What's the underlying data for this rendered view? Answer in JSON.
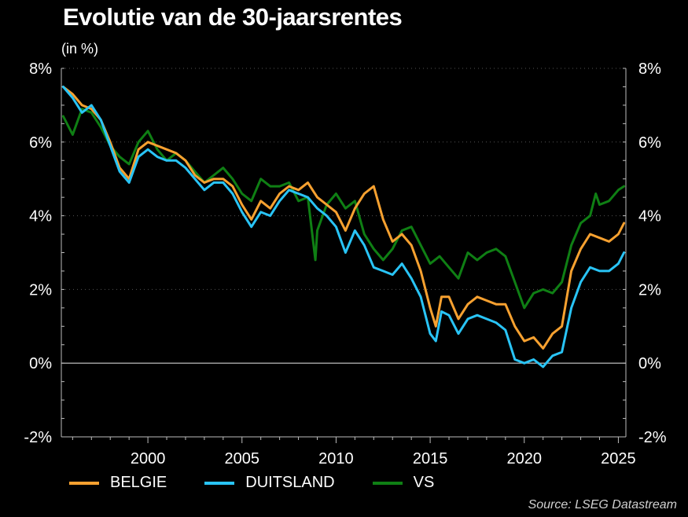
{
  "chart_data": {
    "type": "line",
    "title": "Evolutie van de 30-jaarsrentes",
    "subtitle": "(in %)",
    "source": "Source: LSEG Datastream",
    "ylim": [
      -2,
      8
    ],
    "yticks": [
      -2,
      0,
      2,
      4,
      6,
      8
    ],
    "ytick_labels": [
      "-2%",
      "0%",
      "2%",
      "4%",
      "6%",
      "8%"
    ],
    "xlim": [
      1995.4,
      2025.4
    ],
    "xticks": [
      2000,
      2005,
      2010,
      2015,
      2020,
      2025
    ],
    "xtick_labels": [
      "2000",
      "2005",
      "2010",
      "2015",
      "2020",
      "2025"
    ],
    "grid": true,
    "legend_position": "bottom-left",
    "series": [
      {
        "name": "BELGIE",
        "color": "#f7a130",
        "x": [
          1995.5,
          1996,
          1996.5,
          1997,
          1997.5,
          1998,
          1998.5,
          1999,
          1999.5,
          2000,
          2000.5,
          2001,
          2001.5,
          2002,
          2002.5,
          2003,
          2003.5,
          2004,
          2004.5,
          2005,
          2005.5,
          2006,
          2006.5,
          2007,
          2007.5,
          2008,
          2008.5,
          2009,
          2009.5,
          2010,
          2010.5,
          2011,
          2011.5,
          2012,
          2012.5,
          2013,
          2013.5,
          2014,
          2014.5,
          2015,
          2015.3,
          2015.6,
          2016,
          2016.5,
          2017,
          2017.5,
          2018,
          2018.5,
          2019,
          2019.5,
          2020,
          2020.5,
          2021,
          2021.5,
          2022,
          2022.5,
          2023,
          2023.5,
          2024,
          2024.5,
          2025,
          2025.3
        ],
        "values": [
          7.5,
          7.3,
          7.0,
          6.9,
          6.6,
          6.0,
          5.3,
          5.0,
          5.8,
          6.0,
          5.9,
          5.8,
          5.7,
          5.5,
          5.1,
          4.9,
          5.0,
          5.0,
          4.8,
          4.3,
          3.9,
          4.4,
          4.2,
          4.6,
          4.8,
          4.7,
          4.9,
          4.5,
          4.3,
          4.1,
          3.6,
          4.2,
          4.6,
          4.8,
          3.9,
          3.3,
          3.5,
          3.2,
          2.5,
          1.5,
          1.0,
          1.8,
          1.8,
          1.2,
          1.6,
          1.8,
          1.7,
          1.6,
          1.6,
          1.0,
          0.6,
          0.7,
          0.4,
          0.8,
          1.0,
          2.5,
          3.1,
          3.5,
          3.4,
          3.3,
          3.5,
          3.8
        ]
      },
      {
        "name": "DUITSLAND",
        "color": "#29c4f6",
        "x": [
          1995.5,
          1996,
          1996.5,
          1997,
          1997.5,
          1998,
          1998.5,
          1999,
          1999.5,
          2000,
          2000.5,
          2001,
          2001.5,
          2002,
          2002.5,
          2003,
          2003.5,
          2004,
          2004.5,
          2005,
          2005.5,
          2006,
          2006.5,
          2007,
          2007.5,
          2008,
          2008.5,
          2009,
          2009.5,
          2010,
          2010.5,
          2011,
          2011.5,
          2012,
          2012.5,
          2013,
          2013.5,
          2014,
          2014.5,
          2015,
          2015.3,
          2015.6,
          2016,
          2016.5,
          2017,
          2017.5,
          2018,
          2018.5,
          2019,
          2019.5,
          2020,
          2020.5,
          2021,
          2021.5,
          2022,
          2022.5,
          2023,
          2023.5,
          2024,
          2024.5,
          2025,
          2025.3
        ],
        "values": [
          7.5,
          7.2,
          6.8,
          7.0,
          6.6,
          5.9,
          5.2,
          4.9,
          5.6,
          5.8,
          5.6,
          5.5,
          5.5,
          5.3,
          5.0,
          4.7,
          4.9,
          4.9,
          4.6,
          4.1,
          3.7,
          4.1,
          4.0,
          4.4,
          4.7,
          4.6,
          4.5,
          4.2,
          4.0,
          3.7,
          3.0,
          3.6,
          3.2,
          2.6,
          2.5,
          2.4,
          2.7,
          2.3,
          1.8,
          0.8,
          0.6,
          1.4,
          1.3,
          0.8,
          1.2,
          1.3,
          1.2,
          1.1,
          0.9,
          0.1,
          0.0,
          0.1,
          -0.1,
          0.2,
          0.3,
          1.5,
          2.2,
          2.6,
          2.5,
          2.5,
          2.7,
          3.0
        ]
      },
      {
        "name": "VS",
        "color": "#0f7f14",
        "x": [
          1995.5,
          1996,
          1996.5,
          1997,
          1997.5,
          1998,
          1998.5,
          1999,
          1999.5,
          2000,
          2000.5,
          2001,
          2001.5,
          2002,
          2002.5,
          2003,
          2003.5,
          2004,
          2004.5,
          2005,
          2005.5,
          2006,
          2006.5,
          2007,
          2007.5,
          2008,
          2008.5,
          2008.9,
          2009,
          2009.5,
          2010,
          2010.5,
          2011,
          2011.5,
          2012,
          2012.5,
          2013,
          2013.5,
          2014,
          2014.5,
          2015,
          2015.5,
          2016,
          2016.5,
          2017,
          2017.5,
          2018,
          2018.5,
          2019,
          2019.5,
          2020,
          2020.5,
          2021,
          2021.5,
          2022,
          2022.5,
          2023,
          2023.5,
          2023.8,
          2024,
          2024.5,
          2025,
          2025.3
        ],
        "values": [
          6.7,
          6.2,
          6.9,
          6.8,
          6.4,
          5.9,
          5.6,
          5.4,
          6.0,
          6.3,
          5.8,
          5.5,
          5.7,
          5.5,
          5.2,
          4.9,
          5.1,
          5.3,
          5.0,
          4.6,
          4.4,
          5.0,
          4.8,
          4.8,
          4.9,
          4.4,
          4.5,
          2.8,
          3.6,
          4.3,
          4.6,
          4.2,
          4.4,
          3.5,
          3.1,
          2.8,
          3.1,
          3.6,
          3.7,
          3.2,
          2.7,
          2.9,
          2.6,
          2.3,
          3.0,
          2.8,
          3.0,
          3.1,
          2.9,
          2.2,
          1.5,
          1.9,
          2.0,
          1.9,
          2.2,
          3.2,
          3.8,
          4.0,
          4.6,
          4.3,
          4.4,
          4.7,
          4.8
        ]
      }
    ]
  }
}
